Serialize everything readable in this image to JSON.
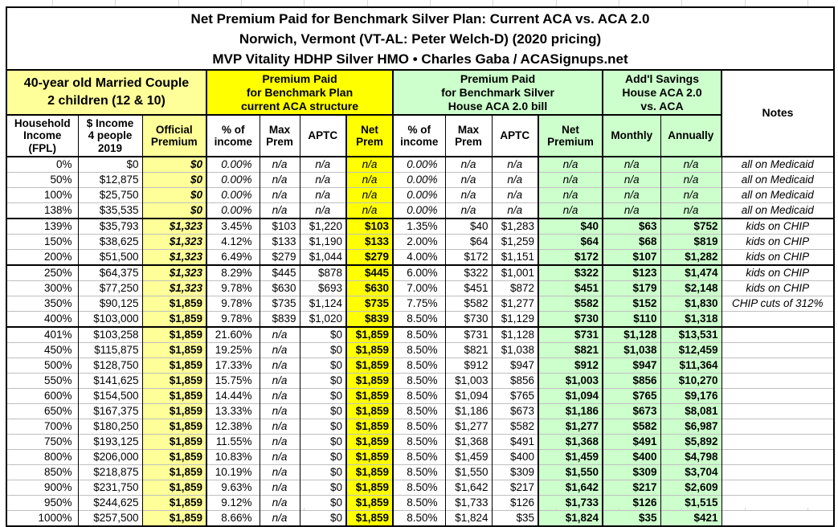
{
  "title": {
    "line1": "Net Premium Paid for Benchmark Silver Plan: Current ACA vs. ACA 2.0",
    "line2": "Norwich, Vermont (VT-AL: Peter Welch-D) (2020 pricing)",
    "line3": "MVP Vitality HDHP Silver HMO • Charles Gaba / ACASignups.net"
  },
  "groups": {
    "household": "40-year old Married Couple\n2 children (12 & 10)",
    "aca": "Premium Paid\nfor Benchmark Plan\ncurrent ACA structure",
    "aca20": "Premium Paid\nfor Benchmark Silver\nHouse ACA 2.0 bill",
    "savings": "Add'l Savings\nHouse ACA 2.0\nvs. ACA",
    "notes": "Notes"
  },
  "columns": [
    "Household\nIncome\n(FPL)",
    "$ Income\n4 people\n2019",
    "Official\nPremium",
    "% of\nincome",
    "Max\nPrem",
    "APTC",
    "Net\nPrem",
    "% of\nincome",
    "Max\nPrem",
    "APTC",
    "Net\nPremium",
    "Monthly",
    "Annually"
  ],
  "colors": {
    "bright_yellow": "#ffff00",
    "light_yellow": "#ffff99",
    "light_green": "#ccffcc",
    "row_gridline": "#bfbfbf"
  },
  "group_separators_after_fpl": [
    "138%",
    "200%",
    "400%"
  ],
  "rows": [
    [
      "0%",
      "$0",
      "$0",
      "0.00%",
      "n/a",
      "n/a",
      "n/a",
      "0.00%",
      "n/a",
      "n/a",
      "n/a",
      "n/a",
      "n/a",
      "all on Medicaid"
    ],
    [
      "50%",
      "$12,875",
      "$0",
      "0.00%",
      "n/a",
      "n/a",
      "n/a",
      "0.00%",
      "n/a",
      "n/a",
      "n/a",
      "n/a",
      "n/a",
      "all on Medicaid"
    ],
    [
      "100%",
      "$25,750",
      "$0",
      "0.00%",
      "n/a",
      "n/a",
      "n/a",
      "0.00%",
      "n/a",
      "n/a",
      "n/a",
      "n/a",
      "n/a",
      "all on Medicaid"
    ],
    [
      "138%",
      "$35,535",
      "$0",
      "0.00%",
      "n/a",
      "n/a",
      "n/a",
      "0.00%",
      "n/a",
      "n/a",
      "n/a",
      "n/a",
      "n/a",
      "all on Medicaid"
    ],
    [
      "139%",
      "$35,793",
      "$1,323",
      "3.45%",
      "$103",
      "$1,220",
      "$103",
      "1.35%",
      "$40",
      "$1,283",
      "$40",
      "$63",
      "$752",
      "kids on CHIP"
    ],
    [
      "150%",
      "$38,625",
      "$1,323",
      "4.12%",
      "$133",
      "$1,190",
      "$133",
      "2.00%",
      "$64",
      "$1,259",
      "$64",
      "$68",
      "$819",
      "kids on CHIP"
    ],
    [
      "200%",
      "$51,500",
      "$1,323",
      "6.49%",
      "$279",
      "$1,044",
      "$279",
      "4.00%",
      "$172",
      "$1,151",
      "$172",
      "$107",
      "$1,282",
      "kids on CHIP"
    ],
    [
      "250%",
      "$64,375",
      "$1,323",
      "8.29%",
      "$445",
      "$878",
      "$445",
      "6.00%",
      "$322",
      "$1,001",
      "$322",
      "$123",
      "$1,474",
      "kids on CHIP"
    ],
    [
      "300%",
      "$77,250",
      "$1,323",
      "9.78%",
      "$630",
      "$693",
      "$630",
      "7.00%",
      "$451",
      "$872",
      "$451",
      "$179",
      "$2,148",
      "kids on CHIP"
    ],
    [
      "350%",
      "$90,125",
      "$1,859",
      "9.78%",
      "$735",
      "$1,124",
      "$735",
      "7.75%",
      "$582",
      "$1,277",
      "$582",
      "$152",
      "$1,830",
      "CHIP cuts of 312%"
    ],
    [
      "400%",
      "$103,000",
      "$1,859",
      "9.78%",
      "$839",
      "$1,020",
      "$839",
      "8.50%",
      "$730",
      "$1,129",
      "$730",
      "$110",
      "$1,318",
      ""
    ],
    [
      "401%",
      "$103,258",
      "$1,859",
      "21.60%",
      "n/a",
      "$0",
      "$1,859",
      "8.50%",
      "$731",
      "$1,128",
      "$731",
      "$1,128",
      "$13,531",
      ""
    ],
    [
      "450%",
      "$115,875",
      "$1,859",
      "19.25%",
      "n/a",
      "$0",
      "$1,859",
      "8.50%",
      "$821",
      "$1,038",
      "$821",
      "$1,038",
      "$12,459",
      ""
    ],
    [
      "500%",
      "$128,750",
      "$1,859",
      "17.33%",
      "n/a",
      "$0",
      "$1,859",
      "8.50%",
      "$912",
      "$947",
      "$912",
      "$947",
      "$11,364",
      ""
    ],
    [
      "550%",
      "$141,625",
      "$1,859",
      "15.75%",
      "n/a",
      "$0",
      "$1,859",
      "8.50%",
      "$1,003",
      "$856",
      "$1,003",
      "$856",
      "$10,270",
      ""
    ],
    [
      "600%",
      "$154,500",
      "$1,859",
      "14.44%",
      "n/a",
      "$0",
      "$1,859",
      "8.50%",
      "$1,094",
      "$765",
      "$1,094",
      "$765",
      "$9,176",
      ""
    ],
    [
      "650%",
      "$167,375",
      "$1,859",
      "13.33%",
      "n/a",
      "$0",
      "$1,859",
      "8.50%",
      "$1,186",
      "$673",
      "$1,186",
      "$673",
      "$8,081",
      ""
    ],
    [
      "700%",
      "$180,250",
      "$1,859",
      "12.38%",
      "n/a",
      "$0",
      "$1,859",
      "8.50%",
      "$1,277",
      "$582",
      "$1,277",
      "$582",
      "$6,987",
      ""
    ],
    [
      "750%",
      "$193,125",
      "$1,859",
      "11.55%",
      "n/a",
      "$0",
      "$1,859",
      "8.50%",
      "$1,368",
      "$491",
      "$1,368",
      "$491",
      "$5,892",
      ""
    ],
    [
      "800%",
      "$206,000",
      "$1,859",
      "10.83%",
      "n/a",
      "$0",
      "$1,859",
      "8.50%",
      "$1,459",
      "$400",
      "$1,459",
      "$400",
      "$4,798",
      ""
    ],
    [
      "850%",
      "$218,875",
      "$1,859",
      "10.19%",
      "n/a",
      "$0",
      "$1,859",
      "8.50%",
      "$1,550",
      "$309",
      "$1,550",
      "$309",
      "$3,704",
      ""
    ],
    [
      "900%",
      "$231,750",
      "$1,859",
      "9.63%",
      "n/a",
      "$0",
      "$1,859",
      "8.50%",
      "$1,642",
      "$217",
      "$1,642",
      "$217",
      "$2,609",
      ""
    ],
    [
      "950%",
      "$244,625",
      "$1,859",
      "9.12%",
      "n/a",
      "$0",
      "$1,859",
      "8.50%",
      "$1,733",
      "$126",
      "$1,733",
      "$126",
      "$1,515",
      ""
    ],
    [
      "1000%",
      "$257,500",
      "$1,859",
      "8.66%",
      "n/a",
      "$0",
      "$1,859",
      "8.50%",
      "$1,824",
      "$35",
      "$1,824",
      "$35",
      "$421",
      ""
    ]
  ]
}
